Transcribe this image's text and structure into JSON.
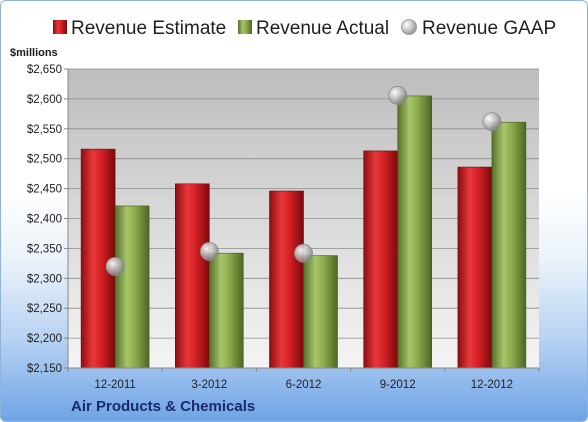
{
  "chart_data": {
    "type": "bar",
    "ylabel": "$millions",
    "footer": "Air Products & Chemicals",
    "categories": [
      "12-2011",
      "3-2012",
      "6-2012",
      "9-2012",
      "12-2012"
    ],
    "ylim": [
      2150,
      2650
    ],
    "yticks": [
      2150,
      2200,
      2250,
      2300,
      2350,
      2400,
      2450,
      2500,
      2550,
      2600,
      2650
    ],
    "ytick_labels": [
      "$2,150",
      "$2,200",
      "$2,250",
      "$2,300",
      "$2,350",
      "$2,400",
      "$2,450",
      "$2,500",
      "$2,550",
      "$2,600",
      "$2,650"
    ],
    "grid": true,
    "legend_position": "top",
    "series": [
      {
        "name": "Revenue Estimate",
        "kind": "bar",
        "color": "#d7262a",
        "values": [
          2516,
          2458,
          2446,
          2513,
          2486
        ]
      },
      {
        "name": "Revenue Actual",
        "kind": "bar",
        "color": "#8aaa4a",
        "values": [
          2421,
          2342,
          2338,
          2605,
          2561
        ]
      },
      {
        "name": "Revenue GAAP",
        "kind": "marker",
        "color": "#b8b8b8",
        "values": [
          2320,
          2345,
          2342,
          2606,
          2562
        ]
      }
    ]
  }
}
